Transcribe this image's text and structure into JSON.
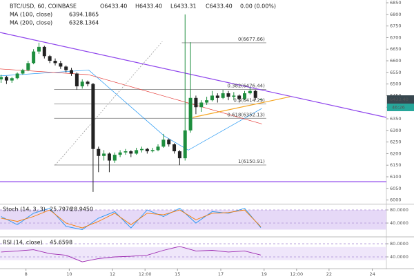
{
  "header": {
    "symbol": "BTC/USD, 60, COINBASE",
    "open": "O6433.40",
    "high": "H6433.40",
    "low": "L6433.31",
    "close": "C6433.40",
    "change": "0.00 (0.00%)",
    "last_price": "6433.40",
    "countdown": "46:26"
  },
  "chart_data": [
    {
      "type": "candlestick",
      "x": [
        6.85,
        7.1,
        7.35,
        7.6,
        7.85,
        8.1,
        8.35,
        8.6,
        8.85,
        9.1,
        9.35,
        9.6,
        9.85,
        10.1,
        10.35,
        10.6,
        10.85,
        11.1,
        11.35,
        11.6,
        11.85,
        12.1,
        12.35,
        12.6,
        12.85,
        13.1,
        13.35,
        13.6,
        13.85,
        14.1,
        14.35,
        14.6,
        14.85,
        15.1,
        15.35,
        15.6,
        15.85,
        16.1,
        16.35,
        16.6,
        16.85,
        17.1,
        17.35,
        17.6,
        17.85,
        18.1,
        18.35,
        18.6,
        18.85
      ],
      "open": [
        6520,
        6530,
        6515,
        6525,
        6545,
        6560,
        6590,
        6640,
        6660,
        6620,
        6600,
        6590,
        6575,
        6560,
        6545,
        6490,
        6510,
        6500,
        6220,
        6190,
        6200,
        6170,
        6195,
        6205,
        6210,
        6200,
        6215,
        6220,
        6210,
        6215,
        6230,
        6260,
        6240,
        6210,
        6180,
        6300,
        6440,
        6400,
        6420,
        6430,
        6450,
        6440,
        6460,
        6445,
        6450,
        6435,
        6460,
        6470,
        6433.4
      ],
      "high": [
        6540,
        6535,
        6530,
        6550,
        6565,
        6600,
        6650,
        6678,
        6665,
        6625,
        6610,
        6600,
        6580,
        6570,
        6550,
        6520,
        6515,
        6505,
        6230,
        6215,
        6205,
        6205,
        6215,
        6220,
        6215,
        6225,
        6230,
        6225,
        6225,
        6240,
        6285,
        6265,
        6245,
        6215,
        6800,
        6680,
        6450,
        6430,
        6445,
        6470,
        6460,
        6475,
        6470,
        6465,
        6455,
        6470,
        6485,
        6475,
        6433.4
      ],
      "low": [
        6505,
        6500,
        6505,
        6520,
        6540,
        6555,
        6585,
        6630,
        6610,
        6590,
        6580,
        6565,
        6550,
        6535,
        6475,
        6480,
        6490,
        6035,
        6120,
        6170,
        6120,
        6160,
        6185,
        6195,
        6185,
        6195,
        6205,
        6200,
        6205,
        6210,
        6225,
        6230,
        6200,
        6150,
        6170,
        6290,
        6370,
        6380,
        6410,
        6425,
        6420,
        6435,
        6430,
        6430,
        6420,
        6430,
        6455,
        6430,
        6433.31
      ],
      "close": [
        6530,
        6515,
        6525,
        6545,
        6560,
        6590,
        6640,
        6660,
        6620,
        6600,
        6590,
        6575,
        6560,
        6545,
        6490,
        6510,
        6500,
        6220,
        6190,
        6200,
        6170,
        6195,
        6205,
        6210,
        6200,
        6215,
        6220,
        6210,
        6215,
        6230,
        6260,
        6240,
        6210,
        6180,
        6300,
        6440,
        6400,
        6420,
        6430,
        6450,
        6440,
        6460,
        6445,
        6450,
        6435,
        6460,
        6470,
        6440,
        6433.4
      ],
      "up_color": "#1e8e3e",
      "down_color": "#222222",
      "xlim": [
        6.8,
        24.65
      ],
      "ylim": [
        5984,
        6862
      ],
      "yticks": [
        6000,
        6050,
        6100,
        6150,
        6200,
        6250,
        6300,
        6350,
        6400,
        6450,
        6500,
        6550,
        6600,
        6650,
        6700,
        6750,
        6800,
        6850
      ],
      "indicators": [
        {
          "name": "MA (100, close)",
          "value_label": "6394.1865",
          "color": "#2196f3",
          "x": [
            6.8,
            10.9,
            14.4,
            15.5,
            18.9
          ],
          "values": [
            6535,
            6560,
            6275,
            6215,
            6395
          ]
        },
        {
          "name": "MA (200, close)",
          "value_label": "6328.1364",
          "color": "#e53935",
          "x": [
            6.8,
            10.9,
            18.9
          ],
          "values": [
            6565,
            6540,
            6328
          ]
        }
      ],
      "trendlines": [
        {
          "color": "#8e44ec",
          "x": [
            6.8,
            24.65
          ],
          "values": [
            6722,
            6356
          ]
        },
        {
          "color": "#8e44ec",
          "x": [
            6.8,
            24.65
          ],
          "values": [
            6079,
            6079
          ]
        },
        {
          "color": "#f5a623",
          "x": [
            15.7,
            20.2
          ],
          "values": [
            6356,
            6445
          ]
        },
        {
          "color": "#999999",
          "x": [
            9.35,
            14.3
          ],
          "values": [
            6150,
            6683
          ]
        }
      ],
      "fib_levels": [
        {
          "label": "0(6677.66)",
          "value": 6677.66,
          "x": [
            15.2,
            19.1
          ]
        },
        {
          "label": "0.382(6476.44)",
          "value": 6476.44,
          "x": [
            9.3,
            19.1
          ]
        },
        {
          "label": "0.5(6414.29)",
          "value": 6414.29,
          "x": [
            9.3,
            19.1
          ]
        },
        {
          "label": "0.618(6352.13)",
          "value": 6352.13,
          "x": [
            9.3,
            19.1
          ]
        },
        {
          "label": "1(6150.91)",
          "value": 6150.91,
          "x": [
            9.3,
            19.1
          ]
        }
      ]
    },
    {
      "type": "line",
      "title": "Stoch (14, 3, 3)",
      "x": [
        6.85,
        7.6,
        8.35,
        9.1,
        9.85,
        10.6,
        11.35,
        12.1,
        12.85,
        13.6,
        14.35,
        15.1,
        15.85,
        16.6,
        17.35,
        18.1,
        18.85
      ],
      "series": [
        {
          "color": "#2196f3",
          "value_label": "25.7976",
          "values": [
            60,
            35,
            70,
            85,
            30,
            20,
            55,
            75,
            25,
            80,
            60,
            85,
            40,
            75,
            70,
            85,
            25.7976
          ]
        },
        {
          "color": "#f57c00",
          "value_label": "28.9450",
          "values": [
            55,
            45,
            60,
            80,
            40,
            25,
            45,
            70,
            35,
            70,
            65,
            80,
            50,
            70,
            72,
            80,
            28.945
          ]
        }
      ],
      "band": [
        20,
        80
      ],
      "band_color": "#e6d9f7",
      "xlim": [
        6.8,
        24.65
      ],
      "ylim": [
        0,
        100
      ],
      "yticks": [
        {
          "value": 80,
          "label": "80.0000"
        },
        {
          "value": 40,
          "label": "40.0000"
        }
      ]
    },
    {
      "type": "line",
      "title": "RSI (14, close)",
      "x": [
        6.85,
        7.6,
        8.35,
        9.1,
        9.85,
        10.6,
        11.35,
        12.1,
        12.85,
        13.6,
        14.35,
        15.1,
        15.85,
        16.6,
        17.35,
        18.1,
        18.85
      ],
      "series": [
        {
          "color": "#9c27b0",
          "value_label": "45.6598",
          "values": [
            55,
            58,
            62,
            50,
            45,
            25,
            35,
            40,
            42,
            45,
            60,
            72,
            58,
            60,
            55,
            58,
            45.6598
          ]
        }
      ],
      "band": [
        30,
        70
      ],
      "band_color": "#efe6fa",
      "xlim": [
        6.8,
        24.65
      ],
      "ylim": [
        0,
        100
      ],
      "yticks": [
        {
          "value": 80,
          "label": "80.0000"
        },
        {
          "value": 40,
          "label": "40.0000"
        }
      ],
      "xticks": [
        8,
        10,
        12,
        {
          "value": 13.5,
          "label": "12:00"
        },
        15,
        17,
        19,
        {
          "value": 20.5,
          "label": "12:00"
        },
        22,
        24
      ]
    }
  ]
}
